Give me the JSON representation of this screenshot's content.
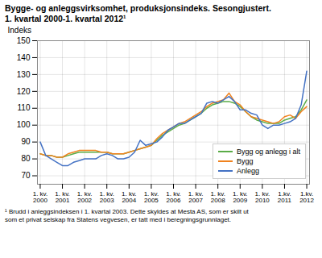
{
  "chart_data": {
    "type": "line",
    "title": "Bygge- og anleggsvirksomhet, produksjonsindeks. Sesongjustert.",
    "subtitle": "1. kvartal 2000-1. kvartal 2012¹",
    "ylabel": "Indeks",
    "footnote": "¹ Brudd i anleggsindeksen i 1. kvartal 2003. Dette skyldes at Mesta AS, som er skilt ut\nsom et privat selskap fra Statens vegvesen, er tatt med i beregningsgrunnlaget.",
    "categories": [
      "1. kv.\n2000",
      null,
      null,
      null,
      "1. kv.\n2001",
      null,
      null,
      null,
      "1. kv.\n2002",
      null,
      null,
      null,
      "1. kv.\n2003",
      null,
      null,
      null,
      "1. kv.\n2004",
      null,
      null,
      null,
      "1. kv.\n2005",
      null,
      null,
      null,
      "1. kv.\n2006",
      null,
      null,
      null,
      "1. kv.\n2007",
      null,
      null,
      null,
      "1. kv.\n2008",
      null,
      null,
      null,
      "1. kv.\n2009",
      null,
      null,
      null,
      "1. kv.\n2010",
      null,
      null,
      null,
      "1.kv.\n2011",
      null,
      null,
      null,
      "1.kv.\n2012"
    ],
    "series": [
      {
        "name": "Bygg og anlegg i alt",
        "color": "#5aac47",
        "values": [
          83,
          82,
          82,
          81,
          81,
          82,
          83,
          84,
          84,
          84,
          84,
          84,
          84,
          83,
          83,
          83,
          84,
          85,
          86,
          87,
          88,
          91,
          94,
          96,
          98,
          100,
          101,
          103,
          105,
          107,
          110,
          112,
          113,
          114,
          114,
          113,
          111,
          108,
          105,
          103,
          102,
          101,
          101,
          101,
          103,
          104,
          105,
          109,
          115
        ]
      },
      {
        "name": "Bygg",
        "color": "#f0821e",
        "values": [
          83,
          82,
          82,
          81,
          81,
          83,
          84,
          85,
          85,
          85,
          85,
          84,
          84,
          83,
          83,
          83,
          84,
          85,
          86,
          87,
          88,
          92,
          95,
          97,
          99,
          101,
          102,
          104,
          106,
          108,
          111,
          113,
          114,
          115,
          119,
          114,
          112,
          108,
          105,
          104,
          103,
          102,
          101,
          102,
          105,
          106,
          104,
          108,
          111
        ]
      },
      {
        "name": "Anlegg",
        "color": "#4472c4",
        "values": [
          90,
          82,
          80,
          78,
          76,
          76,
          78,
          79,
          80,
          80,
          80,
          82,
          83,
          82,
          80,
          80,
          81,
          84,
          91,
          88,
          89,
          90,
          93,
          97,
          99,
          101,
          101,
          103,
          105,
          107,
          113,
          114,
          113,
          115,
          117,
          114,
          109,
          109,
          107,
          106,
          100,
          98,
          100,
          100,
          101,
          102,
          104,
          112,
          132
        ]
      }
    ],
    "ylim": [
      65,
      150
    ],
    "yticks": [
      70,
      80,
      90,
      100,
      110,
      120,
      130,
      140,
      150
    ],
    "grid": true,
    "legend": "lower right"
  }
}
